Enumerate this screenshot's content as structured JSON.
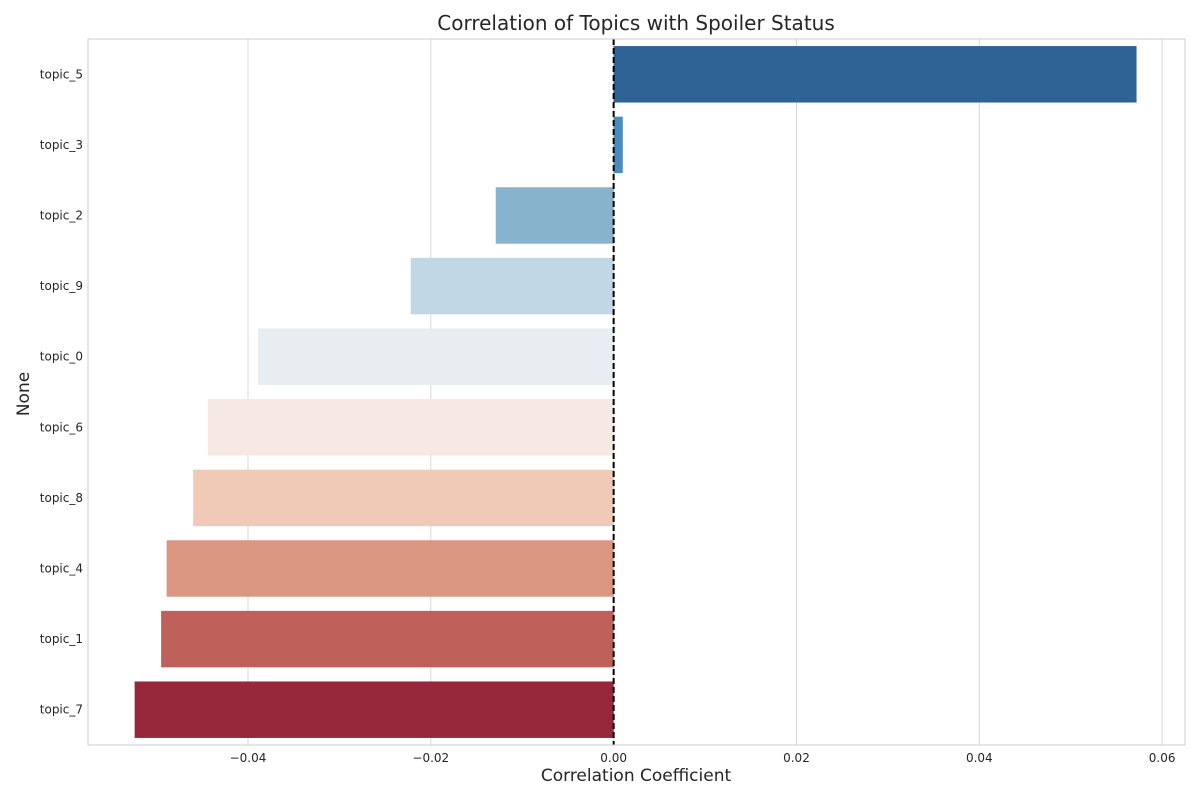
{
  "chart_data": {
    "type": "bar",
    "orientation": "horizontal",
    "title": "Correlation of Topics with Spoiler Status",
    "xlabel": "Correlation Coefficient",
    "ylabel": "None",
    "xlim": [
      -0.0575,
      0.0625
    ],
    "xticks": [
      -0.04,
      -0.02,
      0.0,
      0.02,
      0.04,
      0.06
    ],
    "xtick_labels": [
      "−0.04",
      "−0.02",
      "0.00",
      "0.02",
      "0.04",
      "0.06"
    ],
    "grid": true,
    "reference_line": {
      "x": 0,
      "style": "dashed",
      "color": "#000000"
    },
    "categories": [
      "topic_5",
      "topic_3",
      "topic_2",
      "topic_9",
      "topic_0",
      "topic_6",
      "topic_8",
      "topic_4",
      "topic_1",
      "topic_7"
    ],
    "values": [
      0.0572,
      0.001,
      -0.0129,
      -0.0222,
      -0.0389,
      -0.0444,
      -0.046,
      -0.0489,
      -0.0495,
      -0.0524
    ],
    "colors": [
      "#2f6396",
      "#4a8cbd",
      "#87b3cc",
      "#c1d7e5",
      "#e7edf1",
      "#f6e9e3",
      "#f0cab7",
      "#db9682",
      "#bf605a",
      "#97273a"
    ]
  }
}
